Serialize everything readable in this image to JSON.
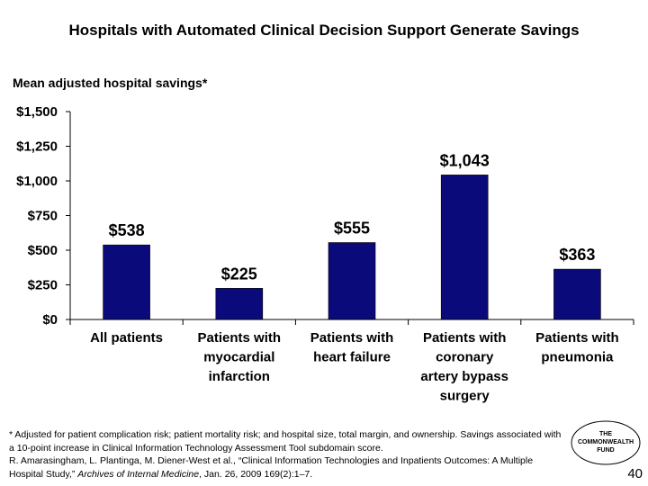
{
  "title": "Hospitals with Automated Clinical Decision Support Generate Savings",
  "subtitle": "Mean adjusted hospital savings*",
  "chart_data": {
    "type": "bar",
    "categories": [
      [
        "All patients"
      ],
      [
        "Patients with",
        "myocardial",
        "infarction"
      ],
      [
        "Patients with",
        "heart failure"
      ],
      [
        "Patients with",
        "coronary",
        "artery bypass",
        "surgery"
      ],
      [
        "Patients with",
        "pneumonia"
      ]
    ],
    "values": [
      538,
      225,
      555,
      1043,
      363
    ],
    "data_labels": [
      "$538",
      "$225",
      "$555",
      "$1,043",
      "$363"
    ],
    "y_ticks": [
      0,
      250,
      500,
      750,
      1000,
      1250,
      1500
    ],
    "y_tick_labels": [
      "$0",
      "$250",
      "$500",
      "$750",
      "$1,000",
      "$1,250",
      "$1,500"
    ],
    "ylim": [
      0,
      1500
    ],
    "grid": false,
    "bar_color": "#0a0a7a",
    "legend": "none"
  },
  "footnote": {
    "line1": "* Adjusted for patient complication risk; patient mortality risk; and hospital size, total margin, and ownership. Savings associated with a 10-point increase in Clinical Information Technology Assessment Tool subdomain score.",
    "ref_prefix": "R. Amarasingham, L. Plantinga, M. Diener-West et al., “Clinical Information Technologies and Inpatients Outcomes: A Multiple Hospital Study,” ",
    "journal": "Archives of Internal Medicine",
    "ref_suffix": ", Jan. 26, 2009 169(2):1–7."
  },
  "logo": {
    "line1": "THE",
    "line2": "COMMONWEALTH",
    "line3": "FUND"
  },
  "page_number": "40"
}
